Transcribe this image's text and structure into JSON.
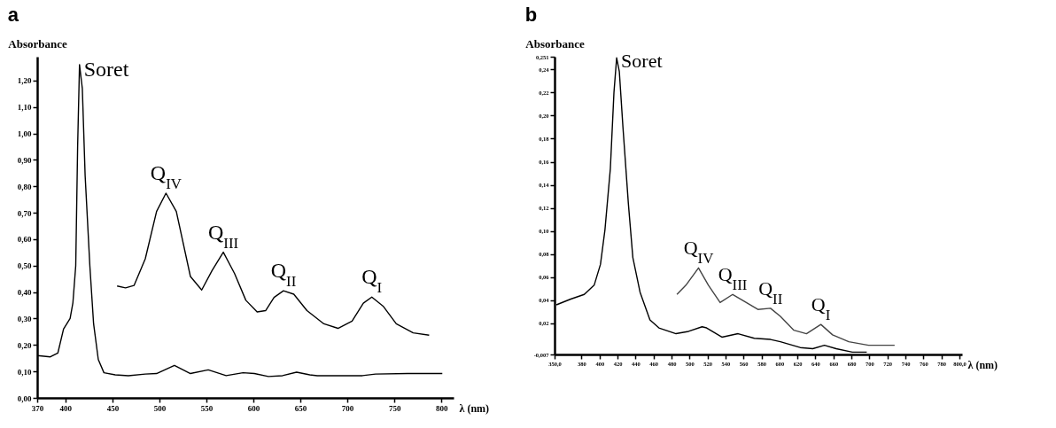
{
  "chart_data": [
    {
      "type": "line",
      "title": "a",
      "ylabel": "Absorbance",
      "xlabel": "λ (nm)",
      "xlim": [
        370,
        813
      ],
      "xticks": [
        370,
        400,
        450,
        500,
        550,
        600,
        650,
        700,
        750,
        800
      ],
      "ylim": [
        0,
        1.29
      ],
      "yticks": [
        {
          "value": 0,
          "label": "0,00"
        },
        {
          "value": 0.1,
          "label": "0,10"
        },
        {
          "value": 0.2,
          "label": "0,20"
        },
        {
          "value": 0.3,
          "label": "0,30"
        },
        {
          "value": 0.4,
          "label": "0,40"
        },
        {
          "value": 0.5,
          "label": "0,50"
        },
        {
          "value": 0.6,
          "label": "0,60"
        },
        {
          "value": 0.7,
          "label": "0,70"
        },
        {
          "value": 0.8,
          "label": "0,80"
        },
        {
          "value": 0.9,
          "label": "0,90"
        },
        {
          "value": 1.0,
          "label": "1,00"
        },
        {
          "value": 1.1,
          "label": "1,10"
        },
        {
          "value": 1.2,
          "label": "1,20"
        }
      ],
      "series": [
        {
          "color": "#000000",
          "x": [
            370,
            384,
            392,
            398,
            405,
            408,
            411,
            413,
            415,
            418,
            421,
            426,
            430,
            435,
            441,
            453,
            467,
            485,
            497,
            516,
            533,
            552,
            571,
            589,
            601,
            616,
            631,
            646,
            660,
            668,
            716,
            730,
            764,
            777,
            801
          ],
          "values": [
            0.16,
            0.155,
            0.17,
            0.26,
            0.3,
            0.36,
            0.5,
            0.95,
            1.26,
            1.17,
            0.84,
            0.5,
            0.28,
            0.145,
            0.095,
            0.087,
            0.084,
            0.09,
            0.092,
            0.123,
            0.092,
            0.106,
            0.084,
            0.095,
            0.092,
            0.081,
            0.084,
            0.097,
            0.087,
            0.084,
            0.084,
            0.09,
            0.092,
            0.092,
            0.092
          ]
        },
        {
          "color": "#000000",
          "x": [
            455,
            464,
            473,
            485,
            497,
            507,
            518,
            533,
            545,
            556,
            568,
            580,
            592,
            604,
            613,
            622,
            632,
            643,
            657,
            675,
            690,
            705,
            717,
            726,
            738,
            752,
            770,
            787
          ],
          "values": [
            0.423,
            0.416,
            0.425,
            0.526,
            0.705,
            0.774,
            0.705,
            0.459,
            0.408,
            0.481,
            0.551,
            0.47,
            0.369,
            0.325,
            0.33,
            0.38,
            0.405,
            0.392,
            0.33,
            0.28,
            0.263,
            0.29,
            0.358,
            0.381,
            0.347,
            0.28,
            0.246,
            0.237
          ]
        }
      ],
      "annotations": [
        {
          "text": "Soret",
          "x": 415,
          "y": 1.26
        },
        {
          "text": "Q$_{IV}$",
          "x": 507,
          "y": 0.774
        },
        {
          "text": "Q$_{III}$",
          "x": 568,
          "y": 0.551
        },
        {
          "text": "Q$_{II}$",
          "x": 632,
          "y": 0.405
        },
        {
          "text": "Q$_{I}$",
          "x": 726,
          "y": 0.381
        }
      ]
    },
    {
      "type": "line",
      "title": "b",
      "ylabel": "Absorbance",
      "xlabel": "λ (nm)",
      "xlim": [
        350,
        803
      ],
      "xticks": [
        {
          "value": 350,
          "label": "350,0"
        },
        380,
        400,
        420,
        440,
        460,
        480,
        500,
        520,
        540,
        560,
        580,
        600,
        620,
        640,
        660,
        680,
        700,
        720,
        740,
        760,
        780,
        {
          "value": 800,
          "label": "800,0"
        }
      ],
      "ylim": [
        -0.007,
        0.251
      ],
      "yticks": [
        {
          "value": -0.007,
          "label": "-0,007"
        },
        {
          "value": 0.02,
          "label": "0,02"
        },
        {
          "value": 0.04,
          "label": "0,04"
        },
        {
          "value": 0.06,
          "label": "0,06"
        },
        {
          "value": 0.08,
          "label": "0,08"
        },
        {
          "value": 0.1,
          "label": "0,10"
        },
        {
          "value": 0.12,
          "label": "0,12"
        },
        {
          "value": 0.14,
          "label": "0,14"
        },
        {
          "value": 0.16,
          "label": "0,16"
        },
        {
          "value": 0.18,
          "label": "0,18"
        },
        {
          "value": 0.2,
          "label": "0,20"
        },
        {
          "value": 0.22,
          "label": "0,22"
        },
        {
          "value": 0.24,
          "label": "0,24"
        },
        {
          "value": 0.251,
          "label": "0,251"
        }
      ],
      "series": [
        {
          "color": "#000000",
          "x": [
            352,
            368,
            383,
            394,
            401,
            406,
            412,
            416,
            419,
            422,
            426,
            432,
            437,
            445,
            456,
            466,
            485,
            499,
            514,
            519,
            536,
            554,
            572,
            590,
            601,
            623,
            637,
            650,
            663,
            681,
            697
          ],
          "values": [
            0.036,
            0.041,
            0.045,
            0.053,
            0.071,
            0.101,
            0.154,
            0.22,
            0.25,
            0.238,
            0.19,
            0.124,
            0.077,
            0.047,
            0.023,
            0.016,
            0.011,
            0.013,
            0.017,
            0.016,
            0.008,
            0.011,
            0.007,
            0.006,
            0.004,
            -0.001,
            -0.002,
            0.001,
            -0.002,
            -0.005,
            -0.005
          ]
        },
        {
          "color": "#444444",
          "x": [
            486,
            496,
            510,
            521,
            534,
            548,
            561,
            576,
            590,
            601,
            616,
            630,
            646,
            659,
            677,
            699,
            728
          ],
          "values": [
            0.045,
            0.053,
            0.068,
            0.053,
            0.038,
            0.045,
            0.039,
            0.032,
            0.033,
            0.026,
            0.014,
            0.011,
            0.019,
            0.01,
            0.004,
            0.001,
            0.001
          ]
        }
      ],
      "annotations": [
        {
          "text": "Soret",
          "x": 419,
          "y": 0.25
        },
        {
          "text": "Q$_{IV}$",
          "x": 510,
          "y": 0.068
        },
        {
          "text": "Q$_{III}$",
          "x": 548,
          "y": 0.045
        },
        {
          "text": "Q$_{II}$",
          "x": 590,
          "y": 0.033
        },
        {
          "text": "Q$_{I}$",
          "x": 646,
          "y": 0.019
        }
      ]
    }
  ]
}
